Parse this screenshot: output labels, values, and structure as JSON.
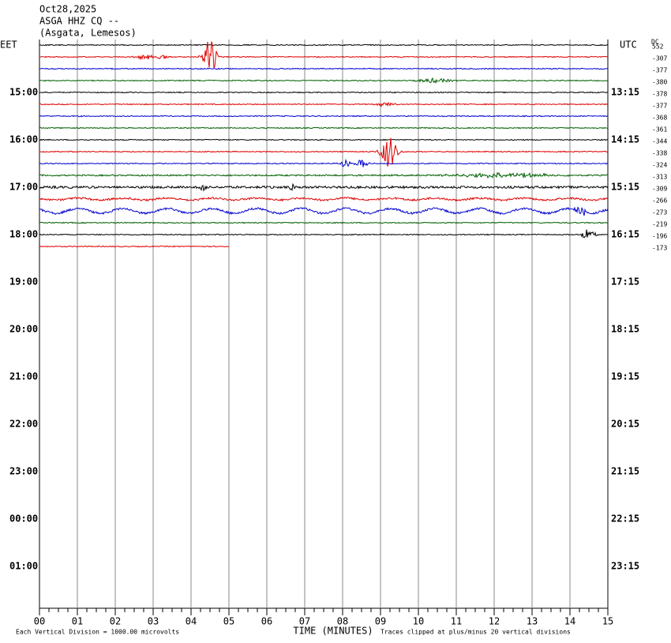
{
  "header": {
    "date": "Oct28,2025",
    "station": "ASGA HHZ CQ --",
    "location": "(Asgata, Lemesos)"
  },
  "left_zone": "EET",
  "right_zone": "UTC",
  "dc_label": "DC",
  "left_times": [
    "15:00",
    "16:00",
    "17:00",
    "18:00",
    "19:00",
    "20:00",
    "21:00",
    "22:00",
    "23:00",
    "00:00",
    "01:00"
  ],
  "right_times": [
    "13:15",
    "14:15",
    "15:15",
    "16:15",
    "17:15",
    "18:15",
    "19:15",
    "20:15",
    "21:15",
    "22:15",
    "23:15"
  ],
  "dc_values": [
    552,
    -307,
    -377,
    -380,
    -378,
    -377,
    -368,
    -361,
    -344,
    -338,
    -324,
    -313,
    -309,
    -266,
    -273,
    -219,
    -196,
    -173
  ],
  "minutes": [
    "00",
    "01",
    "02",
    "03",
    "04",
    "05",
    "06",
    "07",
    "08",
    "09",
    "10",
    "11",
    "12",
    "13",
    "14",
    "15"
  ],
  "x_axis_title": "TIME (MINUTES)",
  "footnote_left": "Each Vertical Division = 1000.00 microvolts",
  "footnote_right": "Traces clipped at plus/minus 20 vertical divisions"
}
